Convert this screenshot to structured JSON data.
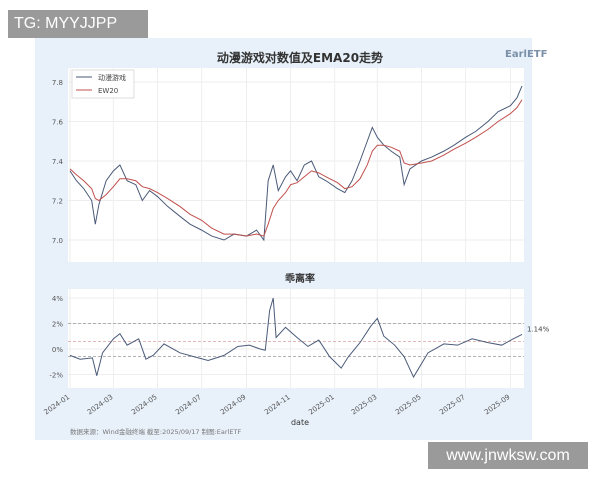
{
  "watermarks": {
    "top_left": "TG: MYYJJPP",
    "bottom_right": "www.jnwksw.com"
  },
  "logo": "EarlETF",
  "footer": "数据来源：Wind金融终端 截至:2025/09/17 制图:EarlETF",
  "colors": {
    "price": "#4a5a78",
    "ema": "#c0504d",
    "panel": "#e8f1fa"
  },
  "chart_data": [
    {
      "type": "line",
      "title": "动漫游戏对数值及EMA20走势",
      "ylim": [
        6.93,
        7.85
      ],
      "yticks": [
        "7.0",
        "7.2",
        "7.4",
        "7.6",
        "7.8"
      ],
      "grid": true,
      "legend": "top-left",
      "x": [
        "2024-01-01",
        "2024-01-10",
        "2024-01-20",
        "2024-01-31",
        "2024-02-05",
        "2024-02-10",
        "2024-02-20",
        "2024-03-01",
        "2024-03-10",
        "2024-03-20",
        "2024-04-01",
        "2024-04-10",
        "2024-04-20",
        "2024-05-01",
        "2024-05-15",
        "2024-06-01",
        "2024-06-15",
        "2024-07-01",
        "2024-07-15",
        "2024-08-01",
        "2024-08-15",
        "2024-09-01",
        "2024-09-15",
        "2024-09-25",
        "2024-10-01",
        "2024-10-08",
        "2024-10-15",
        "2024-10-25",
        "2024-11-01",
        "2024-11-10",
        "2024-11-20",
        "2024-11-30",
        "2024-12-10",
        "2024-12-20",
        "2025-01-05",
        "2025-01-15",
        "2025-01-25",
        "2025-02-05",
        "2025-02-15",
        "2025-02-22",
        "2025-03-01",
        "2025-03-10",
        "2025-03-20",
        "2025-04-01",
        "2025-04-07",
        "2025-04-15",
        "2025-05-01",
        "2025-05-15",
        "2025-06-01",
        "2025-06-15",
        "2025-07-01",
        "2025-07-15",
        "2025-08-01",
        "2025-08-15",
        "2025-09-01",
        "2025-09-10",
        "2025-09-17"
      ],
      "series": [
        {
          "name": "动漫游戏",
          "values": [
            7.35,
            7.3,
            7.26,
            7.2,
            7.08,
            7.18,
            7.3,
            7.35,
            7.38,
            7.3,
            7.28,
            7.2,
            7.25,
            7.22,
            7.17,
            7.12,
            7.08,
            7.05,
            7.02,
            7.0,
            7.03,
            7.02,
            7.05,
            7.0,
            7.3,
            7.38,
            7.25,
            7.32,
            7.35,
            7.3,
            7.38,
            7.4,
            7.32,
            7.3,
            7.26,
            7.24,
            7.3,
            7.4,
            7.5,
            7.57,
            7.52,
            7.48,
            7.45,
            7.42,
            7.28,
            7.36,
            7.4,
            7.42,
            7.45,
            7.48,
            7.52,
            7.55,
            7.6,
            7.65,
            7.68,
            7.72,
            7.78
          ]
        },
        {
          "name": "EW20",
          "values": [
            7.36,
            7.33,
            7.3,
            7.26,
            7.21,
            7.2,
            7.23,
            7.27,
            7.31,
            7.31,
            7.3,
            7.27,
            7.26,
            7.24,
            7.21,
            7.17,
            7.13,
            7.1,
            7.06,
            7.03,
            7.03,
            7.02,
            7.03,
            7.02,
            7.08,
            7.16,
            7.2,
            7.24,
            7.28,
            7.29,
            7.32,
            7.35,
            7.34,
            7.32,
            7.29,
            7.26,
            7.27,
            7.31,
            7.38,
            7.45,
            7.48,
            7.48,
            7.47,
            7.45,
            7.39,
            7.38,
            7.39,
            7.4,
            7.43,
            7.46,
            7.49,
            7.52,
            7.56,
            7.6,
            7.64,
            7.67,
            7.71
          ]
        }
      ]
    },
    {
      "type": "line",
      "title": "乖离率",
      "xlabel": "date",
      "ylim": [
        -2.5,
        4.3
      ],
      "yticks": [
        "-2%",
        "0%",
        "2%",
        "4%"
      ],
      "reference_lines": [
        2.0,
        0.6,
        -0.6
      ],
      "last_label": "1.14%",
      "xticks": [
        "2024-01",
        "2024-03",
        "2024-05",
        "2024-07",
        "2024-09",
        "2024-11",
        "2025-01",
        "2025-03",
        "2025-05",
        "2025-07",
        "2025-09"
      ],
      "x": [
        "2024-01-01",
        "2024-01-15",
        "2024-02-01",
        "2024-02-07",
        "2024-02-15",
        "2024-03-01",
        "2024-03-10",
        "2024-03-20",
        "2024-04-05",
        "2024-04-15",
        "2024-04-25",
        "2024-05-10",
        "2024-06-01",
        "2024-06-20",
        "2024-07-10",
        "2024-08-01",
        "2024-08-20",
        "2024-09-05",
        "2024-09-20",
        "2024-09-27",
        "2024-10-03",
        "2024-10-08",
        "2024-10-12",
        "2024-10-25",
        "2024-11-10",
        "2024-11-25",
        "2024-12-10",
        "2024-12-25",
        "2025-01-10",
        "2025-01-20",
        "2025-02-05",
        "2025-02-20",
        "2025-03-01",
        "2025-03-10",
        "2025-03-25",
        "2025-04-07",
        "2025-04-20",
        "2025-05-10",
        "2025-06-01",
        "2025-06-20",
        "2025-07-10",
        "2025-08-01",
        "2025-08-20",
        "2025-09-05",
        "2025-09-17"
      ],
      "values": [
        -0.5,
        -0.8,
        -0.7,
        -2.1,
        -0.3,
        0.8,
        1.2,
        0.3,
        0.8,
        -0.8,
        -0.5,
        0.4,
        -0.3,
        -0.6,
        -0.9,
        -0.5,
        0.2,
        0.3,
        0.0,
        -0.1,
        3.0,
        4.0,
        0.9,
        1.7,
        0.9,
        0.2,
        0.7,
        -0.6,
        -1.5,
        -0.6,
        0.5,
        1.8,
        2.4,
        1.0,
        0.3,
        -0.6,
        -2.2,
        -0.3,
        0.4,
        0.3,
        0.8,
        0.5,
        0.3,
        0.8,
        1.14
      ]
    }
  ]
}
